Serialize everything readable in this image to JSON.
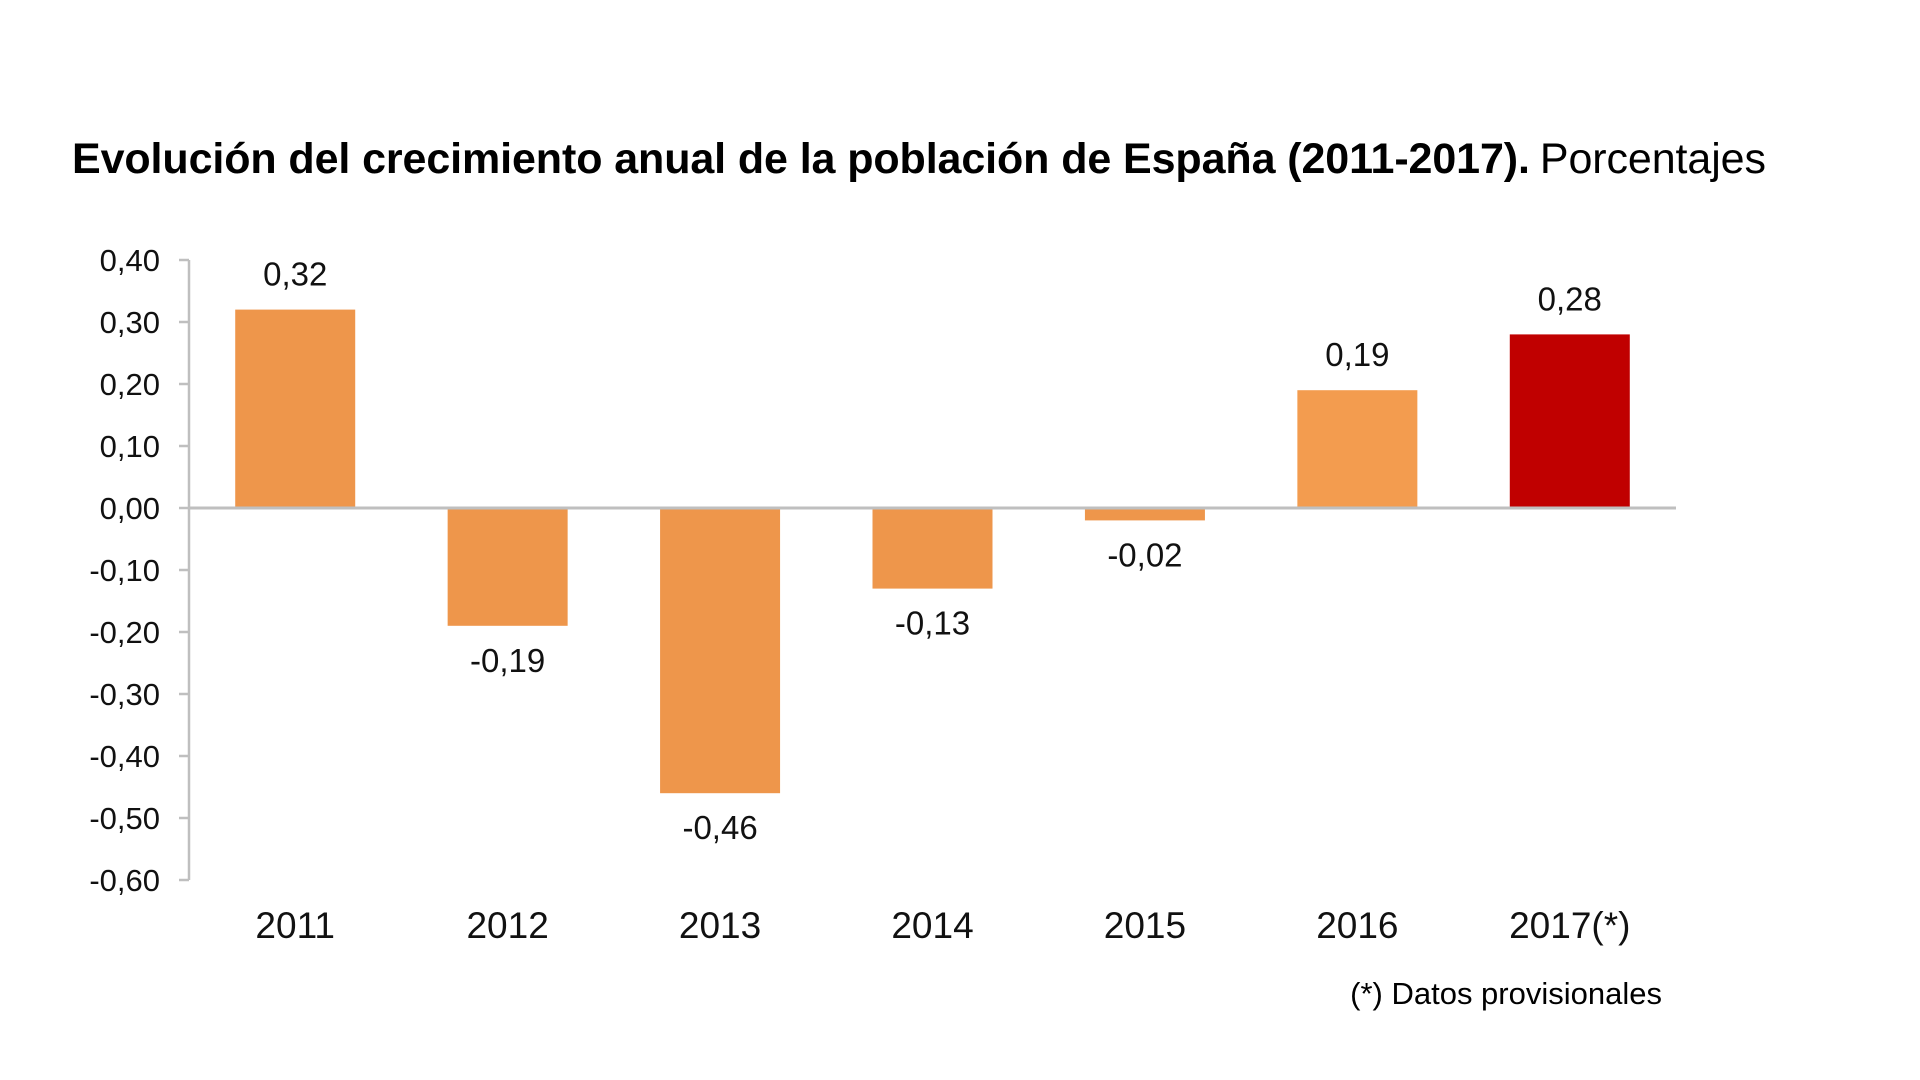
{
  "chart_data": {
    "type": "bar",
    "title": "Evolución del crecimiento anual de la población de España (2011-2017).",
    "subtitle": "Porcentajes",
    "categories": [
      "2011",
      "2012",
      "2013",
      "2014",
      "2015",
      "2016",
      "2017(*)"
    ],
    "values": [
      0.32,
      -0.19,
      -0.46,
      -0.13,
      -0.02,
      0.19,
      0.28
    ],
    "data_labels": [
      "0,32",
      "-0,19",
      "-0,46",
      "-0,13",
      "-0,02",
      "0,19",
      "0,28"
    ],
    "bar_colors": [
      "#ee964b",
      "#ee964b",
      "#ee964b",
      "#ee964b",
      "#ee964b",
      "#f39c4f",
      "#c00000"
    ],
    "ylim": [
      -0.6,
      0.4
    ],
    "yticks": [
      0.4,
      0.3,
      0.2,
      0.1,
      0.0,
      -0.1,
      -0.2,
      -0.3,
      -0.4,
      -0.5,
      -0.6
    ],
    "ytick_labels": [
      "0,40",
      "0,30",
      "0,20",
      "0,10",
      "0,00",
      "-0,10",
      "-0,20",
      "-0,30",
      "-0,40",
      "-0,50",
      "-0,60"
    ],
    "xlabel": "",
    "ylabel": "",
    "grid": false,
    "legend": "none",
    "footnote": "(*) Datos provisionales"
  }
}
